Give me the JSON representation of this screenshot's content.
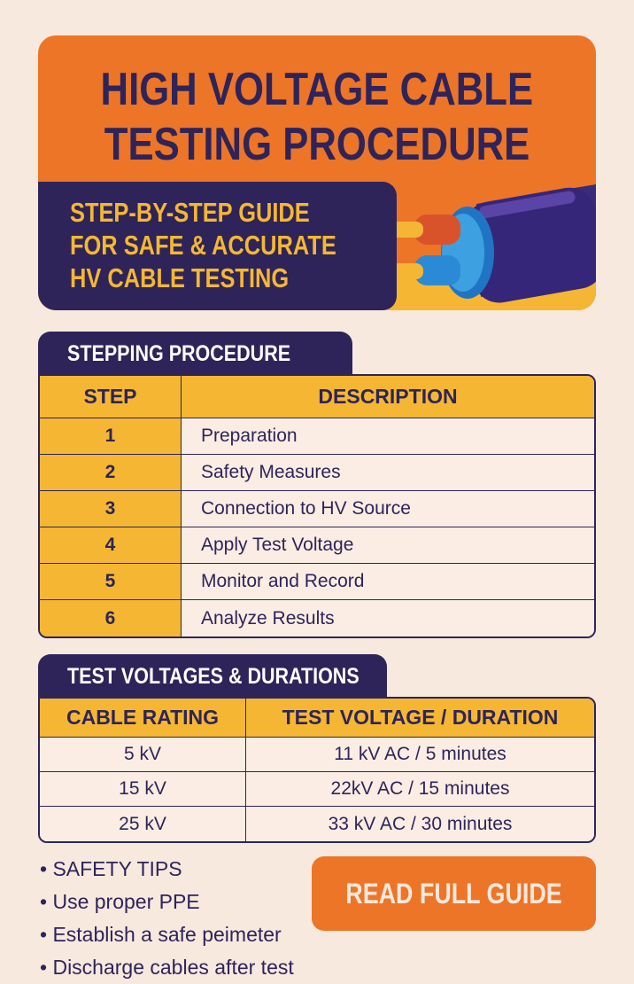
{
  "header": {
    "title_line1": "HIGH VOLTAGE CABLE",
    "title_line2": "TESTING PROCEDURE",
    "subtitle_line1": "STEP-BY-STEP GUIDE",
    "subtitle_line2": "FOR SAFE & ACCURATE",
    "subtitle_line3": "HV CABLE TESTING"
  },
  "procedure": {
    "heading": "STEPPING PROCEDURE",
    "columns": [
      "STEP",
      "DESCRIPTION"
    ],
    "rows": [
      {
        "step": "1",
        "description": "Preparation"
      },
      {
        "step": "2",
        "description": "Safety Measures"
      },
      {
        "step": "3",
        "description": "Connection to HV Source"
      },
      {
        "step": "4",
        "description": "Apply Test Voltage"
      },
      {
        "step": "5",
        "description": "Monitor and Record"
      },
      {
        "step": "6",
        "description": "Analyze Results"
      }
    ]
  },
  "voltages": {
    "heading": "TEST VOLTAGES & DURATIONS",
    "columns": [
      "CABLE RATING",
      "TEST VOLTAGE / DURATION"
    ],
    "rows": [
      {
        "rating": "5 kV",
        "test": "11 kV AC / 5 minutes"
      },
      {
        "rating": "15 kV",
        "test": "22kV AC / 15 minutes"
      },
      {
        "rating": "25 kV",
        "test": "33 kV AC / 30 minutes"
      }
    ]
  },
  "tips": [
    "SAFETY TIPS",
    "Use proper PPE",
    "Establish a safe peimeter",
    "Discharge cables after test"
  ],
  "cta": {
    "label": "READ FULL GUIDE"
  },
  "colors": {
    "orange": "#ed7527",
    "purple": "#2e2459",
    "yellow": "#f5b733",
    "background": "#f8e9df"
  }
}
